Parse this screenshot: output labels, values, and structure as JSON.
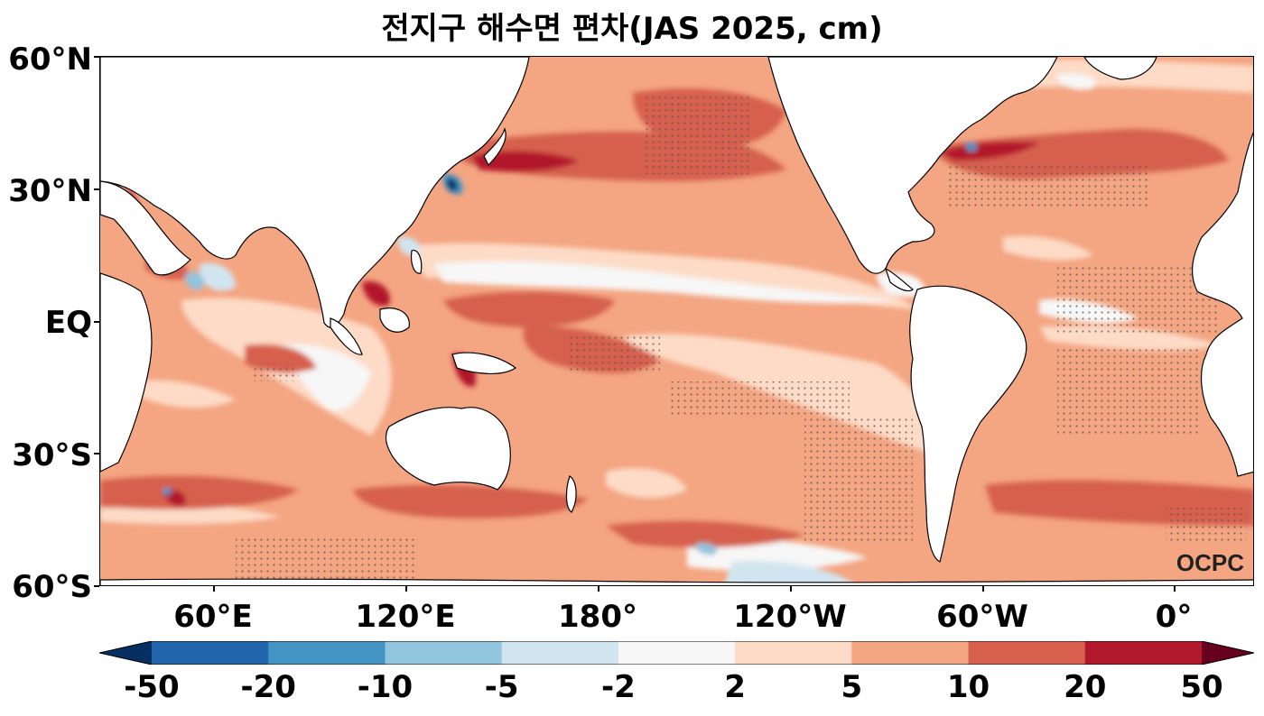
{
  "title": "전지구 해수면 편차(JAS 2025, cm)",
  "lat_labels": [
    "60°N",
    "30°N",
    "EQ",
    "30°S",
    "60°S"
  ],
  "lon_labels": [
    "60°E",
    "120°E",
    "180°",
    "120°W",
    "60°W",
    "0°"
  ],
  "watermark": "OCPC",
  "colorbar": {
    "labels": [
      "-50",
      "-20",
      "-10",
      "-5",
      "-2",
      "2",
      "5",
      "10",
      "20",
      "50"
    ],
    "colors": [
      "#053061",
      "#2166ac",
      "#4393c3",
      "#92c5de",
      "#d1e5f0",
      "#f7f7f7",
      "#fddbc7",
      "#f4a582",
      "#d6604d",
      "#b2182b",
      "#67001f"
    ]
  },
  "map_colors": {
    "base": "#f4a582",
    "light": "#fddbc7",
    "neutral": "#f7f7f7",
    "mid": "#d6604d",
    "strong": "#b2182b",
    "cold_light": "#d1e5f0",
    "cold": "#4393c3",
    "cold_strong": "#053061",
    "land": "#ffffff"
  }
}
